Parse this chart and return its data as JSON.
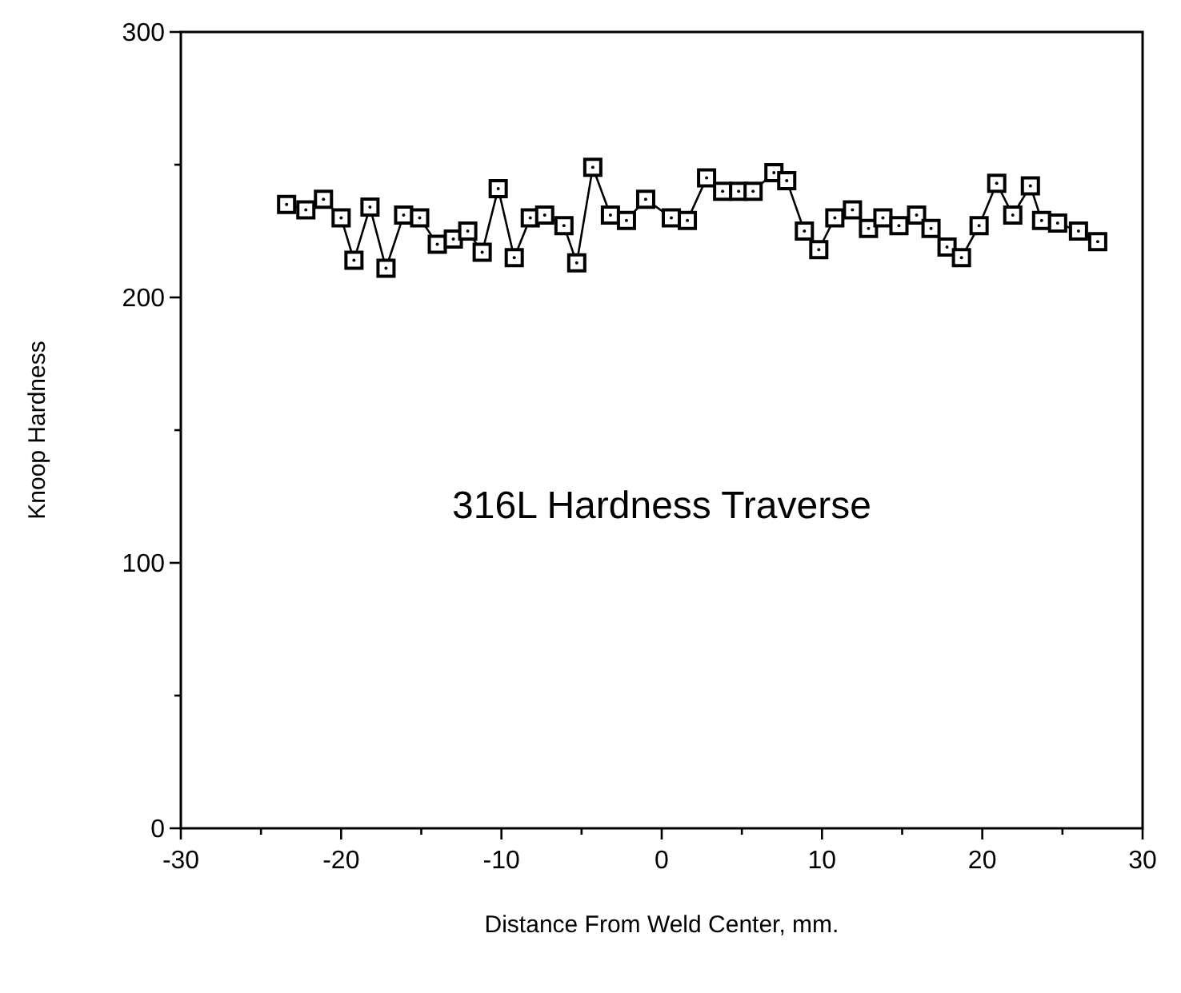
{
  "chart_data": {
    "type": "line",
    "title": "316L Hardness Traverse",
    "xlabel": "Distance From Weld Center, mm.",
    "ylabel": "Knoop Hardness",
    "xlim": [
      -30,
      30
    ],
    "xticks": [
      -30,
      {
        "value": -25,
        "label": null
      },
      -20,
      {
        "value": -15,
        "label": null
      },
      -10,
      {
        "value": -5,
        "label": null
      },
      0,
      {
        "value": 5,
        "label": null
      },
      10,
      {
        "value": 15,
        "label": null
      },
      20,
      {
        "value": 25,
        "label": null
      },
      30
    ],
    "ylim": [
      0,
      300
    ],
    "yticks": [
      0,
      {
        "value": 50,
        "label": null
      },
      100,
      {
        "value": 150,
        "label": null
      },
      200,
      {
        "value": 250,
        "label": null
      },
      300
    ],
    "grid": false,
    "marker": "square",
    "line_style": "solid",
    "series": [
      {
        "color": "#000000",
        "x": [
          -23.4,
          -22.2,
          -21.1,
          -20.0,
          -19.2,
          -18.2,
          -17.2,
          -16.1,
          -15.1,
          -14.0,
          -13.0,
          -12.1,
          -11.2,
          -10.2,
          -9.2,
          -8.2,
          -7.3,
          -6.1,
          -5.3,
          -4.3,
          -3.2,
          -2.2,
          -1.0,
          0.6,
          1.6,
          2.8,
          3.8,
          4.8,
          5.7,
          7.0,
          7.8,
          8.9,
          9.8,
          10.8,
          11.9,
          12.9,
          13.8,
          14.8,
          15.9,
          16.8,
          17.8,
          18.7,
          19.8,
          20.9,
          21.9,
          23.0,
          23.7,
          24.7,
          26.0,
          27.2
        ],
        "values": [
          235,
          233,
          237,
          230,
          214,
          234,
          211,
          231,
          230,
          220,
          222,
          225,
          217,
          241,
          215,
          230,
          231,
          227,
          213,
          249,
          231,
          229,
          237,
          230,
          229,
          245,
          240,
          240,
          240,
          247,
          244,
          225,
          218,
          230,
          233,
          226,
          230,
          227,
          231,
          226,
          219,
          215,
          227,
          243,
          231,
          242,
          229,
          228,
          225,
          221
        ]
      }
    ]
  }
}
